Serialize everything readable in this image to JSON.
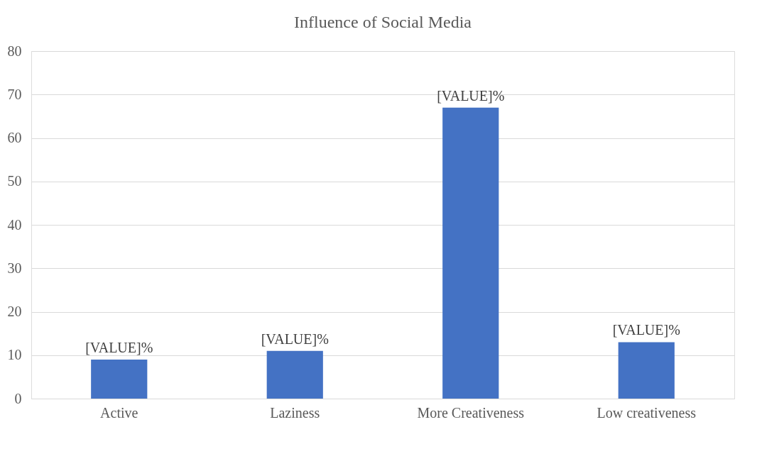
{
  "chart_data": {
    "type": "bar",
    "title": "Influence of Social Media",
    "categories": [
      "Active",
      "Laziness",
      "More Creativeness",
      "Low creativeness"
    ],
    "values": [
      9,
      11,
      67,
      13
    ],
    "color": "#4472c4",
    "value_labels": [
      "[VALUE]%",
      "[VALUE]%",
      "[VALUE]%",
      "[VALUE]%"
    ],
    "ylim": [
      0,
      80
    ],
    "yticks": [
      0,
      10,
      20,
      30,
      40,
      50,
      60,
      70,
      80
    ],
    "grid": "y"
  }
}
